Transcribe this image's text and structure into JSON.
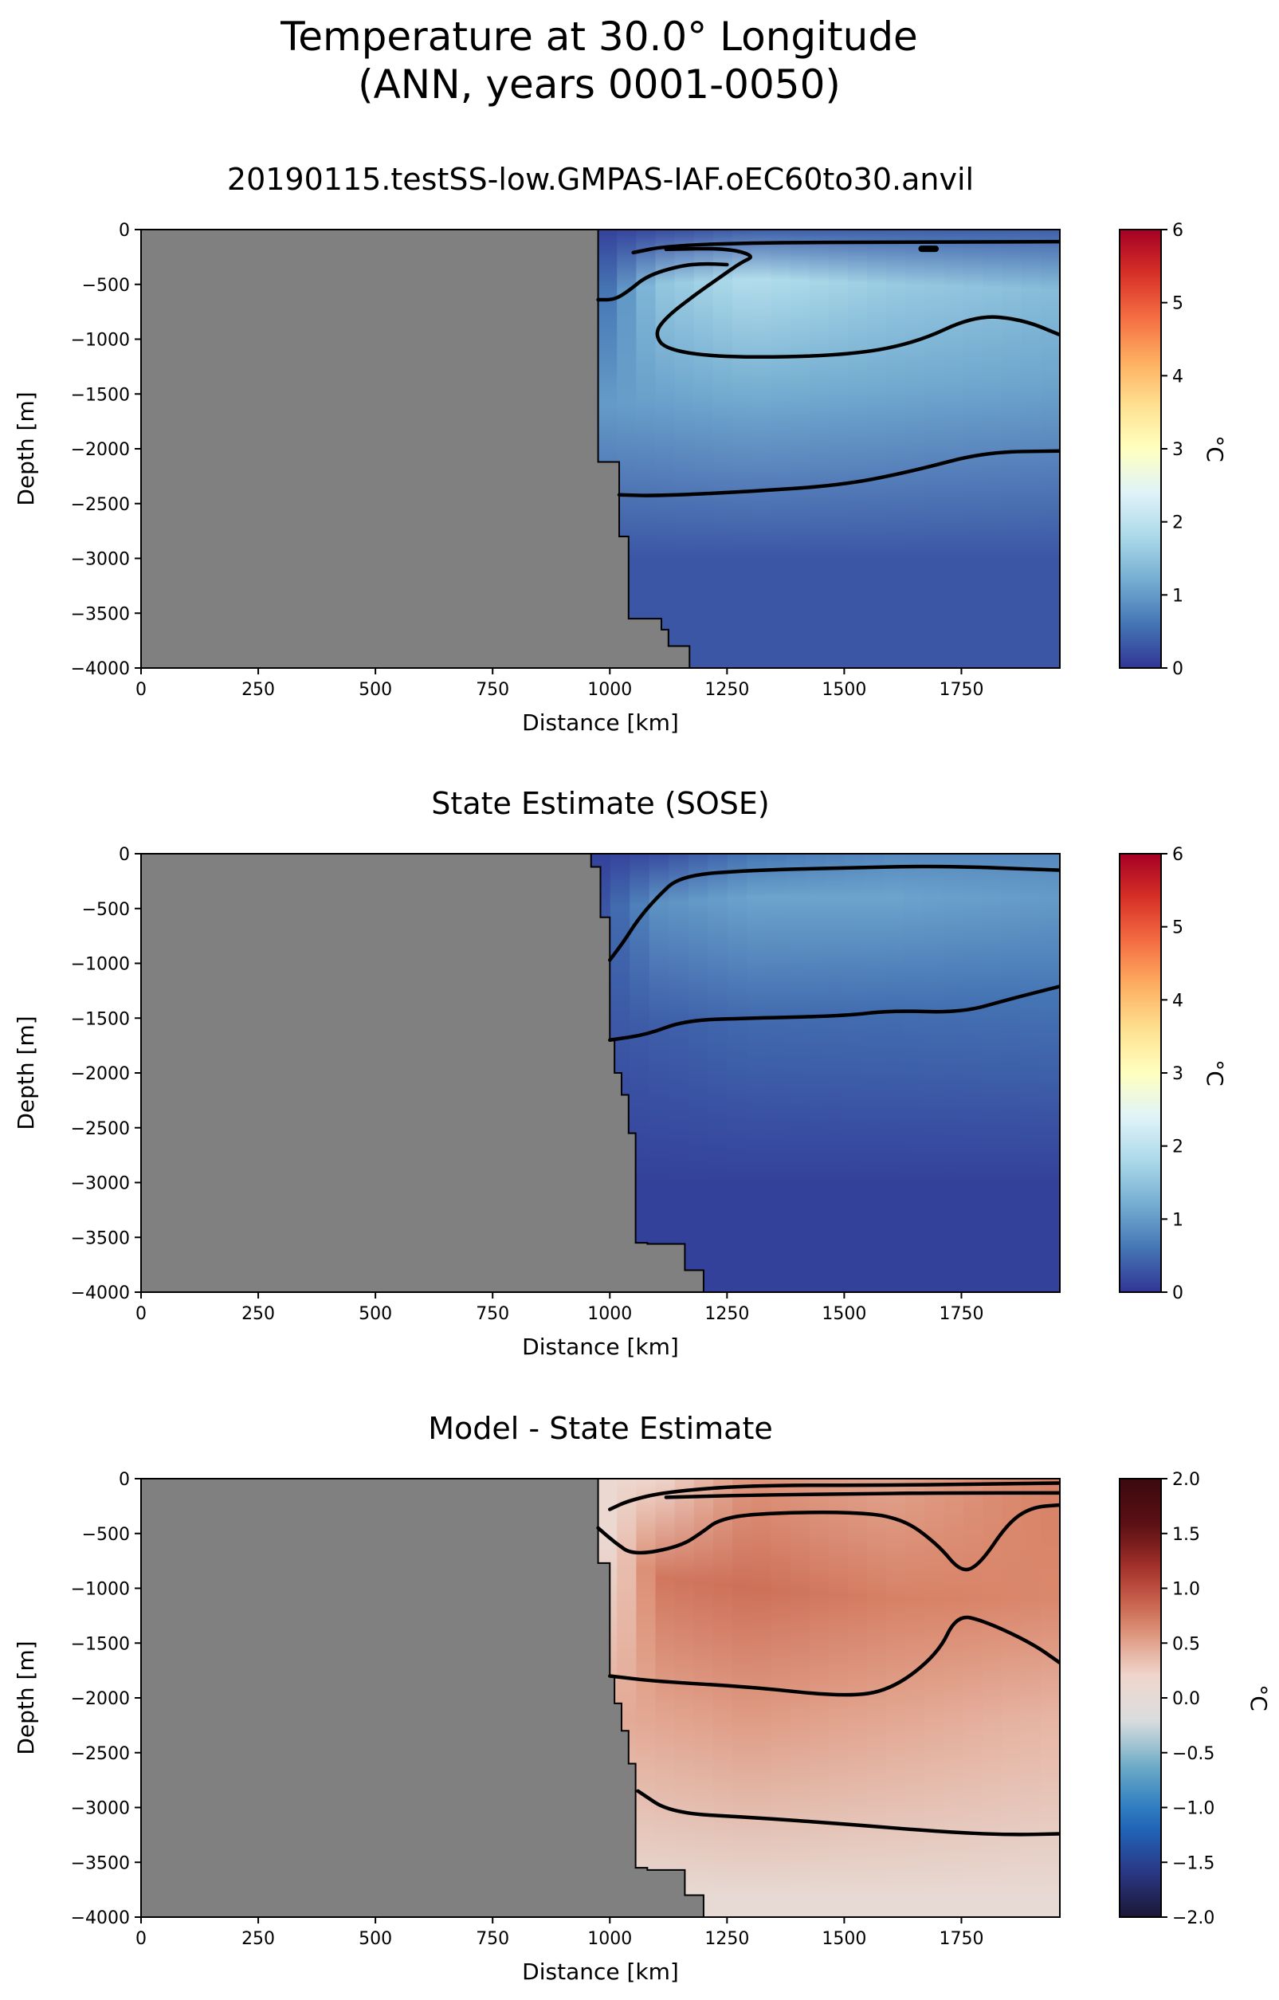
{
  "figure": {
    "suptitle_line1": "Temperature at 30.0° Longitude",
    "suptitle_line2": "(ANN, years 0001-0050)"
  },
  "colors": {
    "land": "#808080",
    "contour": "#000000",
    "temp_cmap": [
      "#313695",
      "#4575b4",
      "#74add1",
      "#abd9e9",
      "#e0f3f8",
      "#ffffbf",
      "#fee090",
      "#fdae61",
      "#f46d43",
      "#d73027",
      "#a50026"
    ],
    "diff_cmap": [
      "#1b1734",
      "#2a3a8c",
      "#1f6fc0",
      "#62a6c4",
      "#d9dddf",
      "#f0d6cc",
      "#d9866a",
      "#b23a2f",
      "#5e0f14",
      "#3a0a0f"
    ]
  },
  "chart_data": [
    {
      "type": "heatmap",
      "title": "20190115.testSS-low.GMPAS-IAF.oEC60to30.anvil",
      "xlabel": "Distance [km]",
      "ylabel": "Depth [m]",
      "xlim": [
        0,
        1960
      ],
      "ylim": [
        -4000,
        0
      ],
      "xticks": [
        0,
        250,
        500,
        750,
        1000,
        1250,
        1500,
        1750
      ],
      "yticks": [
        0,
        -500,
        -1000,
        -1500,
        -2000,
        -2500,
        -3000,
        -3500,
        -4000
      ],
      "colorbar": {
        "label": "°C",
        "min": 0,
        "max": 6,
        "ticks": [
          0,
          1,
          2,
          3,
          4,
          5,
          6
        ],
        "cmap": "temp"
      },
      "land_boundary": [
        [
          975,
          0
        ],
        [
          975,
          -2120
        ],
        [
          1020,
          -2120
        ],
        [
          1020,
          -2800
        ],
        [
          1040,
          -2800
        ],
        [
          1040,
          -3550
        ],
        [
          1110,
          -3550
        ],
        [
          1110,
          -3650
        ],
        [
          1125,
          -3650
        ],
        [
          1125,
          -3800
        ],
        [
          1170,
          -3800
        ],
        [
          1170,
          -4000
        ]
      ],
      "field": {
        "surface": {
          "x": [
            980,
            1100,
            1300,
            1600,
            1960
          ],
          "temp": [
            0.1,
            0.2,
            0.4,
            0.4,
            0.4
          ]
        },
        "core": {
          "x": [
            980,
            1100,
            1300,
            1600,
            1960
          ],
          "temp": [
            0.5,
            1.5,
            1.9,
            1.6,
            1.4
          ]
        },
        "core_depth": [
          -600,
          -500,
          -450,
          -500,
          -550
        ],
        "mid": {
          "x": [
            980,
            1300,
            1960
          ],
          "temp": [
            1.0,
            1.2,
            1.1
          ]
        },
        "mid_depth": [
          -1600,
          -1500,
          -1400
        ],
        "deep": {
          "x": [
            980,
            1960
          ],
          "temp": [
            0.3,
            0.3
          ]
        },
        "deep_depth": [
          -3000,
          -3000
        ]
      },
      "contours": [
        {
          "level": 0.5,
          "points": [
            [
              975,
              -640
            ],
            [
              1010,
              -640
            ],
            [
              1040,
              -560
            ],
            [
              1080,
              -420
            ],
            [
              1150,
              -330
            ],
            [
              1200,
              -310
            ],
            [
              1250,
              -320
            ]
          ]
        },
        {
          "level": 0.5,
          "points": [
            [
              1050,
              -210
            ],
            [
              1120,
              -150
            ],
            [
              1300,
              -120
            ],
            [
              1600,
              -115
            ],
            [
              1960,
              -110
            ]
          ]
        },
        {
          "level": 1.5,
          "points": [
            [
              1120,
              -180
            ],
            [
              1250,
              -170
            ],
            [
              1310,
              -240
            ],
            [
              1280,
              -300
            ],
            [
              1240,
              -420
            ],
            [
              1180,
              -600
            ],
            [
              1120,
              -800
            ],
            [
              1095,
              -950
            ],
            [
              1120,
              -1100
            ],
            [
              1250,
              -1170
            ],
            [
              1500,
              -1150
            ],
            [
              1650,
              -1040
            ],
            [
              1780,
              -780
            ],
            [
              1880,
              -820
            ],
            [
              1960,
              -960
            ]
          ]
        },
        {
          "level": 1.5,
          "points": [
            [
              1665,
              -175
            ],
            [
              1695,
              -175
            ]
          ]
        },
        {
          "level": 0.5,
          "points": [
            [
              1020,
              -2420
            ],
            [
              1100,
              -2430
            ],
            [
              1300,
              -2390
            ],
            [
              1500,
              -2330
            ],
            [
              1650,
              -2200
            ],
            [
              1800,
              -2030
            ],
            [
              1960,
              -2020
            ]
          ]
        }
      ]
    },
    {
      "type": "heatmap",
      "title": "State Estimate (SOSE)",
      "xlabel": "Distance [km]",
      "ylabel": "Depth [m]",
      "xlim": [
        0,
        1960
      ],
      "ylim": [
        -4000,
        0
      ],
      "xticks": [
        0,
        250,
        500,
        750,
        1000,
        1250,
        1500,
        1750
      ],
      "yticks": [
        0,
        -500,
        -1000,
        -1500,
        -2000,
        -2500,
        -3000,
        -3500,
        -4000
      ],
      "colorbar": {
        "label": "°C",
        "min": 0,
        "max": 6,
        "ticks": [
          0,
          1,
          2,
          3,
          4,
          5,
          6
        ],
        "cmap": "temp"
      },
      "land_boundary": [
        [
          960,
          0
        ],
        [
          960,
          -120
        ],
        [
          980,
          -120
        ],
        [
          980,
          -580
        ],
        [
          1000,
          -580
        ],
        [
          1000,
          -1700
        ],
        [
          1010,
          -1700
        ],
        [
          1010,
          -2000
        ],
        [
          1025,
          -2000
        ],
        [
          1025,
          -2200
        ],
        [
          1040,
          -2200
        ],
        [
          1040,
          -2550
        ],
        [
          1055,
          -2550
        ],
        [
          1055,
          -3550
        ],
        [
          1080,
          -3550
        ],
        [
          1080,
          -3560
        ],
        [
          1160,
          -3560
        ],
        [
          1160,
          -3800
        ],
        [
          1200,
          -3800
        ],
        [
          1200,
          -4000
        ]
      ],
      "field": {
        "surface": {
          "x": [
            980,
            1100,
            1300,
            1600,
            1960
          ],
          "temp": [
            0.1,
            0.2,
            0.6,
            0.8,
            0.8
          ]
        },
        "core": {
          "x": [
            980,
            1100,
            1300,
            1600,
            1960
          ],
          "temp": [
            0.3,
            0.9,
            1.1,
            1.1,
            1.0
          ]
        },
        "core_depth": [
          -500,
          -450,
          -400,
          -400,
          -400
        ],
        "mid": {
          "x": [
            980,
            1300,
            1960
          ],
          "temp": [
            0.3,
            0.5,
            0.6
          ]
        },
        "mid_depth": [
          -1600,
          -1500,
          -1300
        ],
        "deep": {
          "x": [
            980,
            1960
          ],
          "temp": [
            0.1,
            0.1
          ]
        },
        "deep_depth": [
          -3000,
          -3000
        ]
      },
      "contours": [
        {
          "level": 0.5,
          "points": [
            [
              1000,
              -970
            ],
            [
              1030,
              -800
            ],
            [
              1060,
              -600
            ],
            [
              1100,
              -400
            ],
            [
              1150,
              -200
            ],
            [
              1300,
              -150
            ],
            [
              1500,
              -130
            ],
            [
              1700,
              -110
            ],
            [
              1960,
              -150
            ]
          ]
        },
        {
          "level": 0.5,
          "points": [
            [
              1000,
              -1700
            ],
            [
              1080,
              -1650
            ],
            [
              1160,
              -1520
            ],
            [
              1300,
              -1500
            ],
            [
              1500,
              -1480
            ],
            [
              1600,
              -1430
            ],
            [
              1750,
              -1450
            ],
            [
              1850,
              -1330
            ],
            [
              1960,
              -1210
            ]
          ]
        }
      ]
    },
    {
      "type": "heatmap",
      "title": "Model - State Estimate",
      "xlabel": "Distance [km]",
      "ylabel": "Depth [m]",
      "xlim": [
        0,
        1960
      ],
      "ylim": [
        -4000,
        0
      ],
      "xticks": [
        0,
        250,
        500,
        750,
        1000,
        1250,
        1500,
        1750
      ],
      "yticks": [
        0,
        -500,
        -1000,
        -1500,
        -2000,
        -2500,
        -3000,
        -3500,
        -4000
      ],
      "colorbar": {
        "label": "°C",
        "min": -2,
        "max": 2,
        "ticks": [
          2.0,
          1.5,
          1.0,
          0.5,
          0.0,
          -0.5,
          -1.0,
          -1.5,
          -2.0
        ],
        "cmap": "diff"
      },
      "land_boundary": [
        [
          975,
          0
        ],
        [
          975,
          -770
        ],
        [
          1000,
          -770
        ],
        [
          1000,
          -1800
        ],
        [
          1010,
          -1800
        ],
        [
          1010,
          -2050
        ],
        [
          1025,
          -2050
        ],
        [
          1025,
          -2300
        ],
        [
          1040,
          -2300
        ],
        [
          1040,
          -2600
        ],
        [
          1055,
          -2600
        ],
        [
          1055,
          -3550
        ],
        [
          1080,
          -3550
        ],
        [
          1080,
          -3570
        ],
        [
          1160,
          -3570
        ],
        [
          1160,
          -3800
        ],
        [
          1200,
          -3800
        ],
        [
          1200,
          -4000
        ]
      ],
      "field": {
        "surface": {
          "x": [
            980,
            1100,
            1300,
            1600,
            1960
          ],
          "temp": [
            0.1,
            0.2,
            0.6,
            0.5,
            0.7
          ]
        },
        "core": {
          "x": [
            980,
            1100,
            1300,
            1600,
            1960
          ],
          "temp": [
            0.0,
            0.75,
            0.8,
            0.7,
            0.65
          ]
        },
        "core_depth": [
          -500,
          -900,
          -1000,
          -1100,
          -1100
        ],
        "mid": {
          "x": [
            980,
            1300,
            1960
          ],
          "temp": [
            0.45,
            0.55,
            0.4
          ]
        },
        "mid_depth": [
          -2200,
          -2200,
          -2200
        ],
        "deep": {
          "x": [
            980,
            1960
          ],
          "temp": [
            0.05,
            0.05
          ]
        },
        "deep_depth": [
          -3800,
          -3800
        ]
      },
      "contours": [
        {
          "level": 0.1,
          "points": [
            [
              1000,
              -280
            ],
            [
              1040,
              -200
            ],
            [
              1120,
              -120
            ],
            [
              1300,
              -60
            ],
            [
              1600,
              -60
            ],
            [
              1960,
              -40
            ]
          ]
        },
        {
          "level": 0.3,
          "points": [
            [
              975,
              -450
            ],
            [
              1010,
              -580
            ],
            [
              1050,
              -700
            ],
            [
              1150,
              -620
            ],
            [
              1200,
              -480
            ],
            [
              1230,
              -380
            ],
            [
              1300,
              -320
            ],
            [
              1500,
              -300
            ],
            [
              1620,
              -350
            ],
            [
              1700,
              -600
            ],
            [
              1750,
              -860
            ],
            [
              1790,
              -780
            ],
            [
              1850,
              -400
            ],
            [
              1900,
              -260
            ],
            [
              1960,
              -240
            ]
          ]
        },
        {
          "level": 0.5,
          "points": [
            [
              1000,
              -1800
            ],
            [
              1100,
              -1850
            ],
            [
              1300,
              -1900
            ],
            [
              1500,
              -1990
            ],
            [
              1600,
              -1930
            ],
            [
              1700,
              -1600
            ],
            [
              1740,
              -1240
            ],
            [
              1800,
              -1300
            ],
            [
              1900,
              -1500
            ],
            [
              1960,
              -1680
            ]
          ]
        },
        {
          "level": 0.3,
          "points": [
            [
              1060,
              -2850
            ],
            [
              1130,
              -3050
            ],
            [
              1300,
              -3090
            ],
            [
              1500,
              -3150
            ],
            [
              1700,
              -3220
            ],
            [
              1850,
              -3250
            ],
            [
              1960,
              -3240
            ]
          ]
        },
        {
          "level": 0.1,
          "points": [
            [
              1120,
              -170
            ],
            [
              1300,
              -150
            ],
            [
              1500,
              -140
            ],
            [
              1700,
              -130
            ],
            [
              1960,
              -130
            ]
          ]
        }
      ]
    }
  ]
}
